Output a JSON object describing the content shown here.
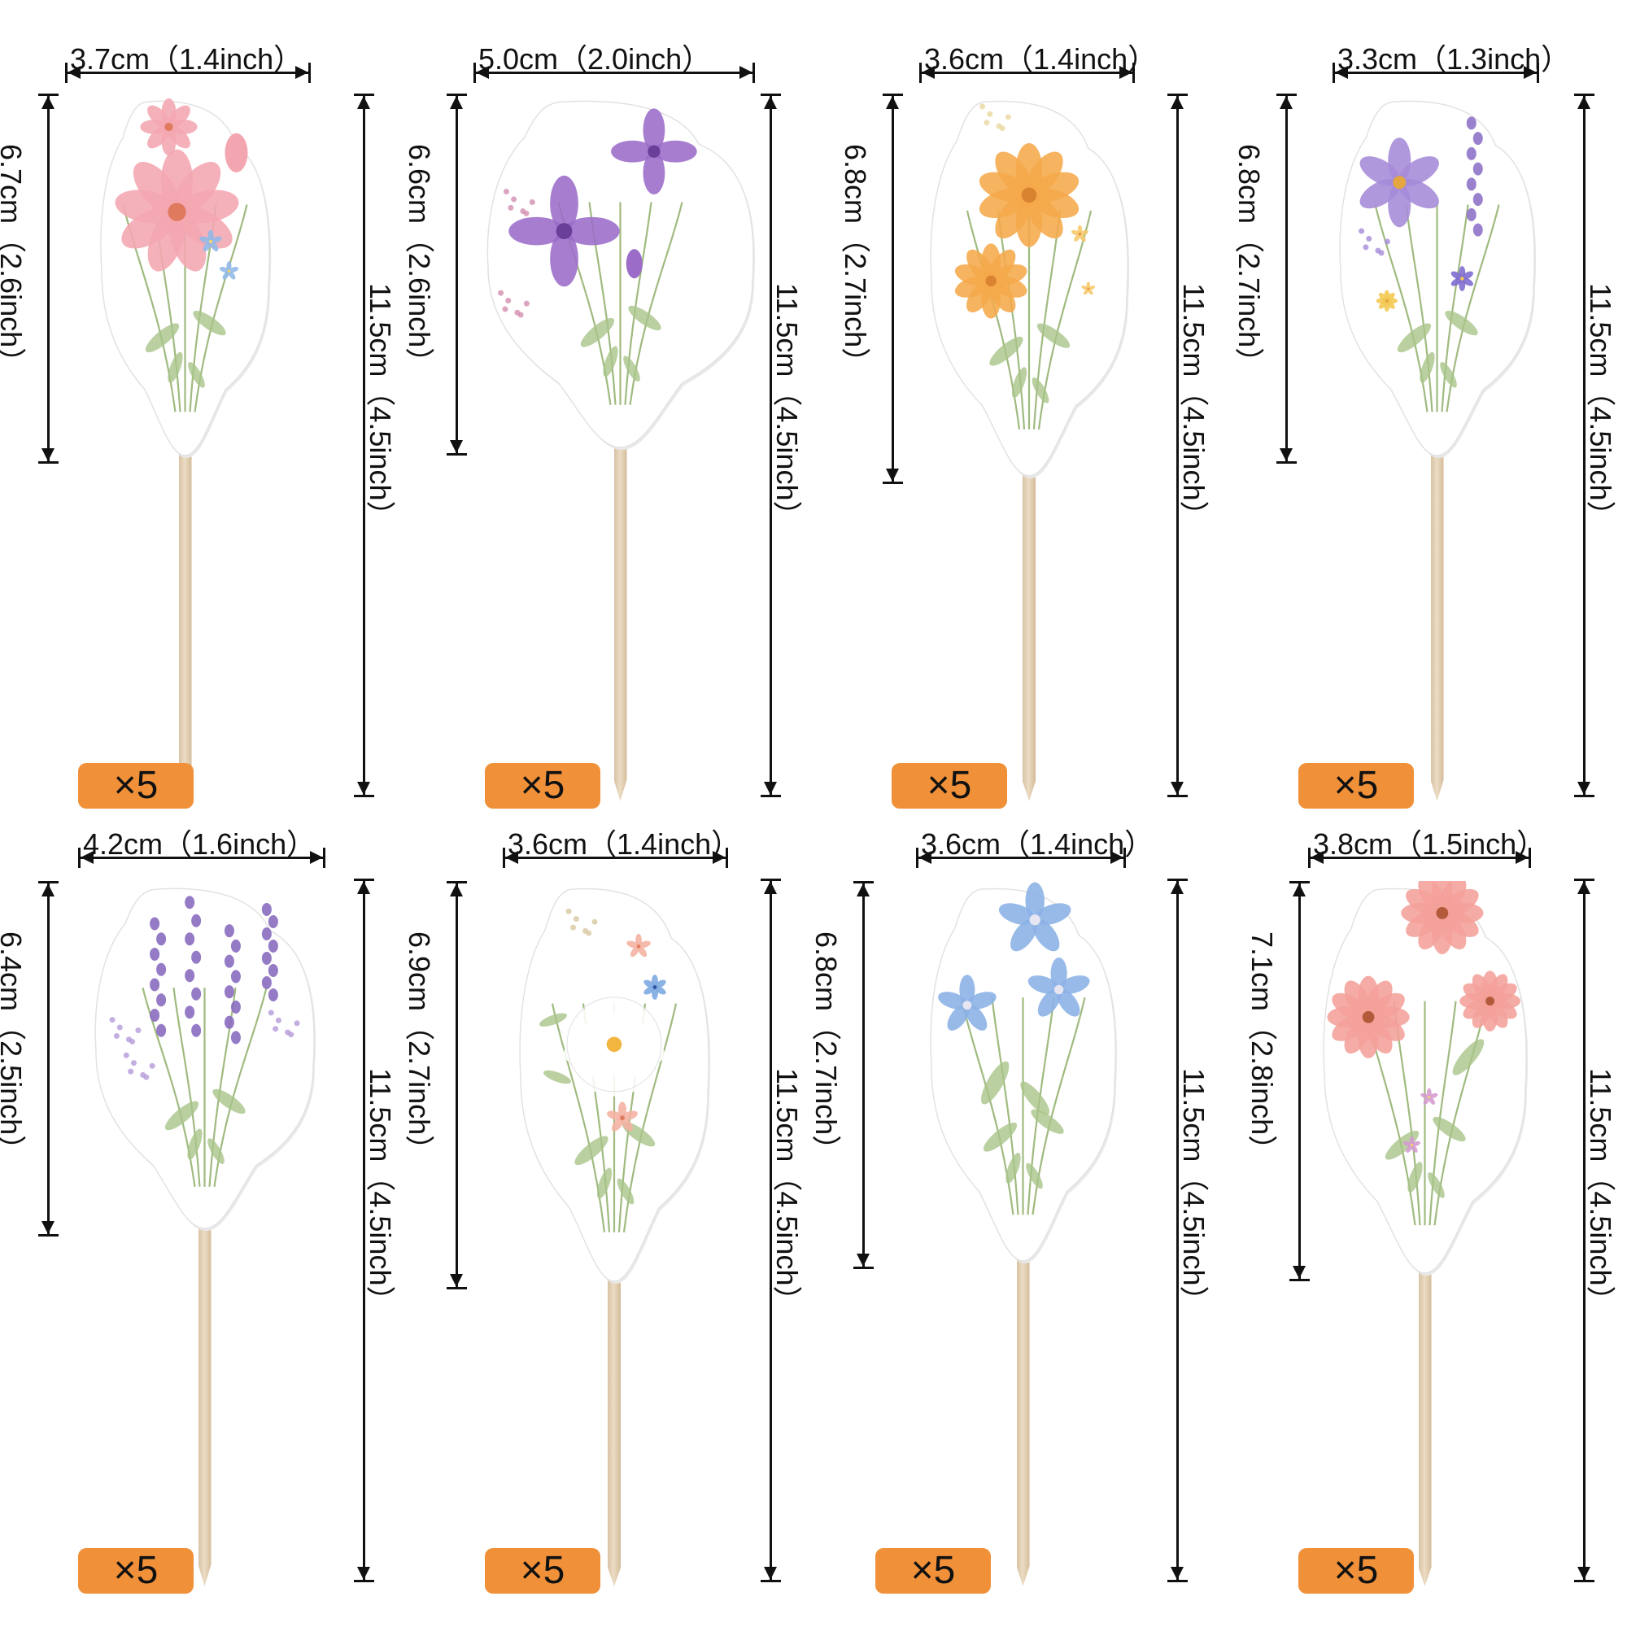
{
  "colors": {
    "badge": "#f0913a",
    "stick": "#dcc7a8",
    "line": "#111111"
  },
  "toppers": [
    {
      "id": "pink-cosmos",
      "width_label": "3.7cm（1.4inch）",
      "card_height_label": "6.7cm（2.6inch）",
      "total_height_label": "11.5cm（4.5inch）",
      "quantity": "×5",
      "flower_color": "#f4a6b0",
      "accent_color": "#8fb8e8"
    },
    {
      "id": "purple-sweet-pea",
      "width_label": "5.0cm（2.0inch）",
      "card_height_label": "6.6cm（2.6inch）",
      "total_height_label": "11.5cm（4.5inch）",
      "quantity": "×5",
      "flower_color": "#9b6cc8",
      "accent_color": "#d28fb0"
    },
    {
      "id": "orange-cosmos",
      "width_label": "3.6cm（1.4inch）",
      "card_height_label": "6.8cm（2.7inch）",
      "total_height_label": "11.5cm（4.5inch）",
      "quantity": "×5",
      "flower_color": "#f5a84a",
      "accent_color": "#f6c768"
    },
    {
      "id": "purple-wildflower",
      "width_label": "3.3cm（1.3inch）",
      "card_height_label": "6.8cm（2.7inch）",
      "total_height_label": "11.5cm（4.5inch）",
      "quantity": "×5",
      "flower_color": "#a58ad8",
      "accent_color": "#f4c850"
    },
    {
      "id": "lavender",
      "width_label": "4.2cm（1.6inch）",
      "card_height_label": "6.4cm（2.5inch）",
      "total_height_label": "11.5cm（4.5inch）",
      "quantity": "×5",
      "flower_color": "#8a6cc0",
      "accent_color": "#b49ad8"
    },
    {
      "id": "white-daisy",
      "width_label": "3.6cm（1.4inch）",
      "card_height_label": "6.9cm（2.7inch）",
      "total_height_label": "11.5cm（4.5inch）",
      "quantity": "×5",
      "flower_color": "#f7f4ee",
      "accent_color": "#f4b0a0"
    },
    {
      "id": "blue-flax",
      "width_label": "3.6cm（1.4inch）",
      "card_height_label": "6.8cm（2.7inch）",
      "total_height_label": "11.5cm（4.5inch）",
      "quantity": "×5",
      "flower_color": "#8ab0e6",
      "accent_color": "#6c8fd0"
    },
    {
      "id": "pink-echinacea",
      "width_label": "3.8cm（1.5inch）",
      "card_height_label": "7.1cm（2.8inch）",
      "total_height_label": "11.5cm（4.5inch）",
      "quantity": "×5",
      "flower_color": "#f4a09a",
      "accent_color": "#d49ad0"
    }
  ]
}
